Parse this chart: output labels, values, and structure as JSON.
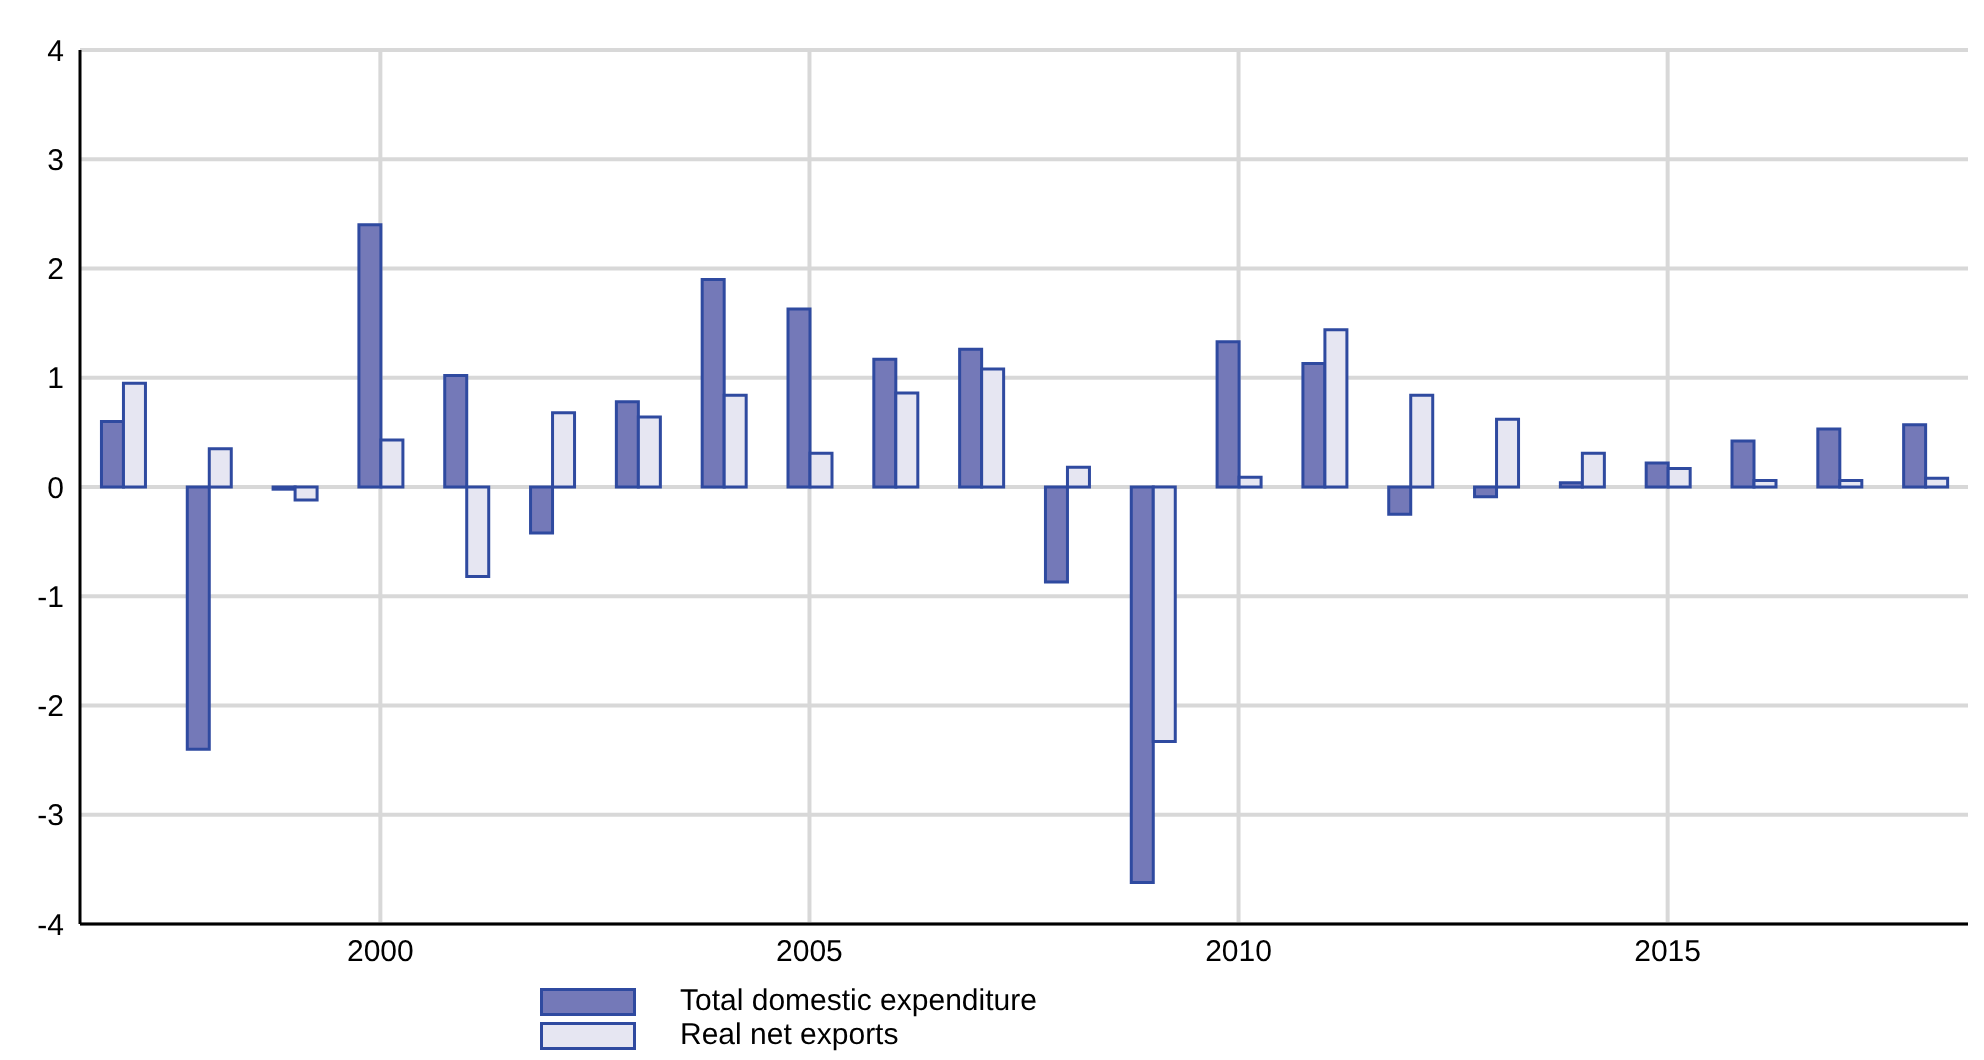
{
  "chart_data": {
    "type": "bar",
    "categories": [
      null,
      null,
      null,
      "2000",
      null,
      null,
      null,
      null,
      "2005",
      null,
      null,
      null,
      null,
      "2010",
      null,
      null,
      null,
      null,
      "2015",
      null,
      null,
      null
    ],
    "series": [
      {
        "name": "Total domestic expenditure",
        "color": "#7479b8",
        "values": [
          0.6,
          -2.4,
          -0.02,
          2.4,
          1.02,
          -0.42,
          0.78,
          1.9,
          1.63,
          1.17,
          1.26,
          -0.87,
          -3.62,
          1.33,
          1.13,
          -0.25,
          -0.09,
          0.04,
          0.22,
          0.42,
          0.53,
          0.57
        ]
      },
      {
        "name": "Real net exports",
        "color": "#e6e6f2",
        "values": [
          0.95,
          0.35,
          -0.12,
          0.43,
          -0.82,
          0.68,
          0.64,
          0.84,
          0.31,
          0.86,
          1.08,
          0.18,
          -2.33,
          0.09,
          1.44,
          0.84,
          0.62,
          0.31,
          0.17,
          0.06,
          0.06,
          0.08
        ]
      }
    ],
    "ylim": [
      -4,
      4
    ],
    "yticks": [
      -4,
      -3,
      -2,
      -1,
      0,
      1,
      2,
      3,
      4
    ],
    "grid": true,
    "legend": "bottom"
  }
}
